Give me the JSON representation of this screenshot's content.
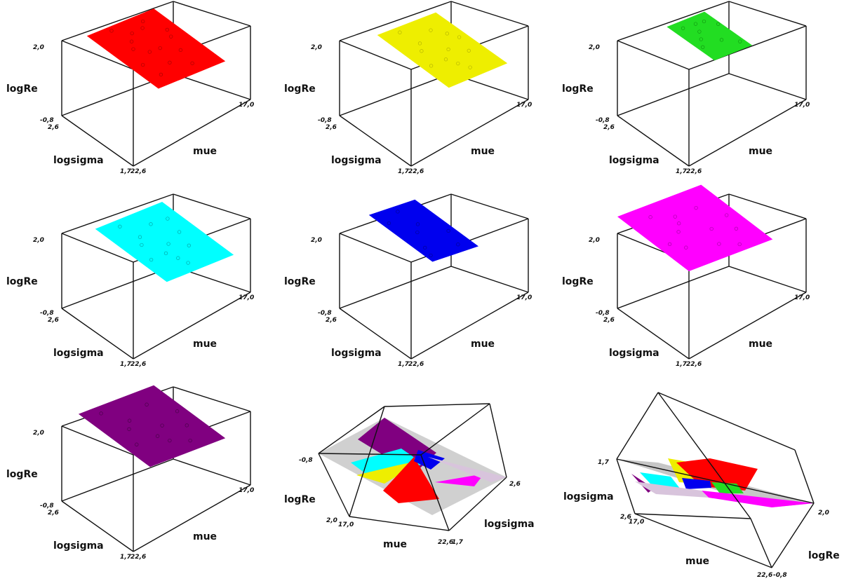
{
  "chart_data": {
    "type": "scatter",
    "variables": {
      "x": "mue",
      "y": "logsigma",
      "z": "logRe"
    },
    "axis_labels": {
      "x": "mue",
      "y": "logsigma",
      "z": "logRe"
    },
    "tick_labels": {
      "x": [
        "17,0",
        "22,6"
      ],
      "y": [
        "1,7",
        "2,6"
      ],
      "z": [
        "-0,8",
        "2,0"
      ]
    },
    "ranges": {
      "x": [
        17.0,
        22.6
      ],
      "y": [
        1.7,
        2.6
      ],
      "z": [
        -0.8,
        2.0
      ]
    },
    "grid": false,
    "panels": [
      {
        "color": "#ff0000",
        "kind": "points_plane",
        "plane": [
          [
            18.2,
            1.7,
            1.22
          ],
          [
            18.2,
            2.6,
            1.56
          ],
          [
            21.4,
            2.6,
            1.22
          ],
          [
            21.4,
            1.7,
            0.88
          ]
        ],
        "points": [
          [
            18.6,
            2.0,
            1.38
          ],
          [
            18.9,
            2.2,
            1.47
          ],
          [
            19.2,
            2.3,
            1.45
          ],
          [
            19.5,
            1.9,
            1.26
          ],
          [
            19.8,
            2.1,
            1.31
          ],
          [
            20.1,
            2.4,
            1.39
          ],
          [
            20.4,
            2.0,
            1.17
          ],
          [
            20.7,
            2.2,
            1.19
          ],
          [
            19.0,
            2.5,
            1.57
          ],
          [
            18.7,
            1.8,
            1.33
          ],
          [
            20.9,
            2.3,
            1.18
          ],
          [
            19.6,
            2.4,
            1.41
          ],
          [
            20.2,
            1.8,
            1.12
          ],
          [
            19.3,
            2.1,
            1.38
          ],
          [
            20.5,
            2.5,
            1.3
          ]
        ]
      },
      {
        "color": "#eeee00",
        "kind": "points_plane",
        "plane": [
          [
            18.8,
            1.7,
            1.02
          ],
          [
            18.8,
            2.6,
            1.36
          ],
          [
            21.6,
            2.6,
            1.02
          ],
          [
            21.6,
            1.7,
            0.74
          ]
        ],
        "points": [
          [
            19.1,
            2.0,
            1.16
          ],
          [
            19.4,
            2.2,
            1.22
          ],
          [
            19.7,
            2.3,
            1.2
          ],
          [
            20.0,
            1.9,
            1.04
          ],
          [
            20.3,
            2.1,
            1.08
          ],
          [
            20.6,
            2.4,
            1.13
          ],
          [
            20.9,
            2.0,
            0.96
          ],
          [
            21.2,
            2.2,
            0.98
          ],
          [
            19.5,
            2.5,
            1.33
          ],
          [
            20.2,
            1.8,
            0.99
          ],
          [
            21.0,
            2.3,
            1.02
          ],
          [
            19.8,
            2.0,
            1.1
          ]
        ]
      },
      {
        "color": "#22dd22",
        "kind": "points_plane",
        "plane": [
          [
            18.6,
            1.8,
            1.82
          ],
          [
            18.6,
            2.4,
            2.0
          ],
          [
            20.4,
            2.4,
            1.8
          ],
          [
            20.4,
            1.8,
            1.62
          ]
        ],
        "points": [
          [
            18.8,
            2.0,
            1.87
          ],
          [
            19.1,
            2.1,
            1.86
          ],
          [
            19.4,
            2.2,
            1.84
          ],
          [
            19.7,
            2.0,
            1.76
          ],
          [
            20.0,
            2.3,
            1.79
          ],
          [
            20.2,
            1.9,
            1.67
          ],
          [
            19.0,
            2.3,
            1.95
          ],
          [
            19.6,
            2.3,
            1.86
          ],
          [
            20.3,
            2.2,
            1.74
          ]
        ]
      },
      {
        "color": "#00ffff",
        "kind": "points_plane",
        "plane": [
          [
            18.6,
            1.7,
            1.05
          ],
          [
            18.6,
            2.6,
            1.4
          ],
          [
            21.8,
            2.6,
            1.05
          ],
          [
            21.8,
            1.7,
            0.7
          ]
        ],
        "points": [
          [
            19.0,
            2.0,
            1.16
          ],
          [
            19.3,
            2.2,
            1.22
          ],
          [
            19.6,
            2.3,
            1.21
          ],
          [
            19.9,
            1.9,
            1.02
          ],
          [
            20.2,
            2.1,
            1.06
          ],
          [
            20.5,
            2.4,
            1.13
          ],
          [
            20.8,
            2.0,
            0.93
          ],
          [
            21.1,
            2.2,
            0.95
          ],
          [
            19.4,
            2.5,
            1.32
          ],
          [
            20.0,
            1.8,
            0.98
          ],
          [
            21.3,
            2.4,
            1.0
          ],
          [
            19.7,
            2.0,
            1.1
          ]
        ]
      },
      {
        "color": "#0000ee",
        "kind": "points_plane",
        "plane": [
          [
            18.4,
            1.8,
            1.62
          ],
          [
            18.4,
            2.6,
            1.92
          ],
          [
            20.6,
            2.6,
            1.58
          ],
          [
            20.6,
            1.8,
            1.28
          ]
        ],
        "points": [
          [
            18.8,
            2.0,
            1.62
          ],
          [
            19.2,
            2.2,
            1.66
          ],
          [
            19.6,
            2.3,
            1.62
          ],
          [
            20.0,
            1.9,
            1.42
          ],
          [
            18.6,
            2.4,
            1.88
          ],
          [
            19.4,
            2.5,
            1.8
          ],
          [
            20.3,
            2.1,
            1.44
          ],
          [
            18.7,
            1.9,
            1.56
          ]
        ]
      },
      {
        "color": "#ff00ff",
        "kind": "points_plane",
        "plane": [
          [
            17.0,
            1.7,
            2.0
          ],
          [
            17.0,
            2.6,
            2.4
          ],
          [
            21.0,
            2.6,
            1.9
          ],
          [
            21.0,
            1.7,
            1.5
          ]
        ],
        "points": [
          [
            18.0,
            2.0,
            1.93
          ],
          [
            18.4,
            2.2,
            1.98
          ],
          [
            18.8,
            2.3,
            1.95
          ],
          [
            19.2,
            1.9,
            1.74
          ],
          [
            19.6,
            2.1,
            1.77
          ],
          [
            20.0,
            2.4,
            1.84
          ],
          [
            20.4,
            2.0,
            1.62
          ],
          [
            20.7,
            2.2,
            1.64
          ],
          [
            18.2,
            2.5,
            2.08
          ],
          [
            19.0,
            2.4,
            1.94
          ],
          [
            19.8,
            1.8,
            1.65
          ],
          [
            17.6,
            2.1,
            2.04
          ]
        ]
      },
      {
        "color": "#800080",
        "kind": "points_plane",
        "plane": [
          [
            17.8,
            1.7,
            1.6
          ],
          [
            17.8,
            2.6,
            1.95
          ],
          [
            21.4,
            2.6,
            1.5
          ],
          [
            21.4,
            1.7,
            1.15
          ]
        ],
        "points": [
          [
            18.3,
            2.0,
            1.68
          ],
          [
            18.7,
            2.2,
            1.72
          ],
          [
            19.1,
            2.3,
            1.69
          ],
          [
            19.5,
            1.9,
            1.5
          ],
          [
            19.9,
            2.1,
            1.53
          ],
          [
            20.3,
            2.4,
            1.6
          ],
          [
            20.7,
            2.0,
            1.38
          ],
          [
            21.0,
            2.2,
            1.42
          ],
          [
            18.5,
            2.5,
            1.85
          ],
          [
            19.3,
            2.0,
            1.57
          ],
          [
            20.1,
            1.8,
            1.42
          ]
        ]
      },
      {
        "kind": "planes",
        "colors": [
          "#c8c8c8",
          "#800080",
          "#00ffff",
          "#eeee00",
          "#ff0000",
          "#0000ee",
          "#ff00ff",
          "#d8c4dc"
        ]
      },
      {
        "kind": "planes",
        "colors": [
          "#bcbcbc",
          "#800080",
          "#00ffff",
          "#eeee00",
          "#ff0000",
          "#0000ee",
          "#22dd22",
          "#ff00ff",
          "#d8c4dc"
        ]
      }
    ]
  }
}
